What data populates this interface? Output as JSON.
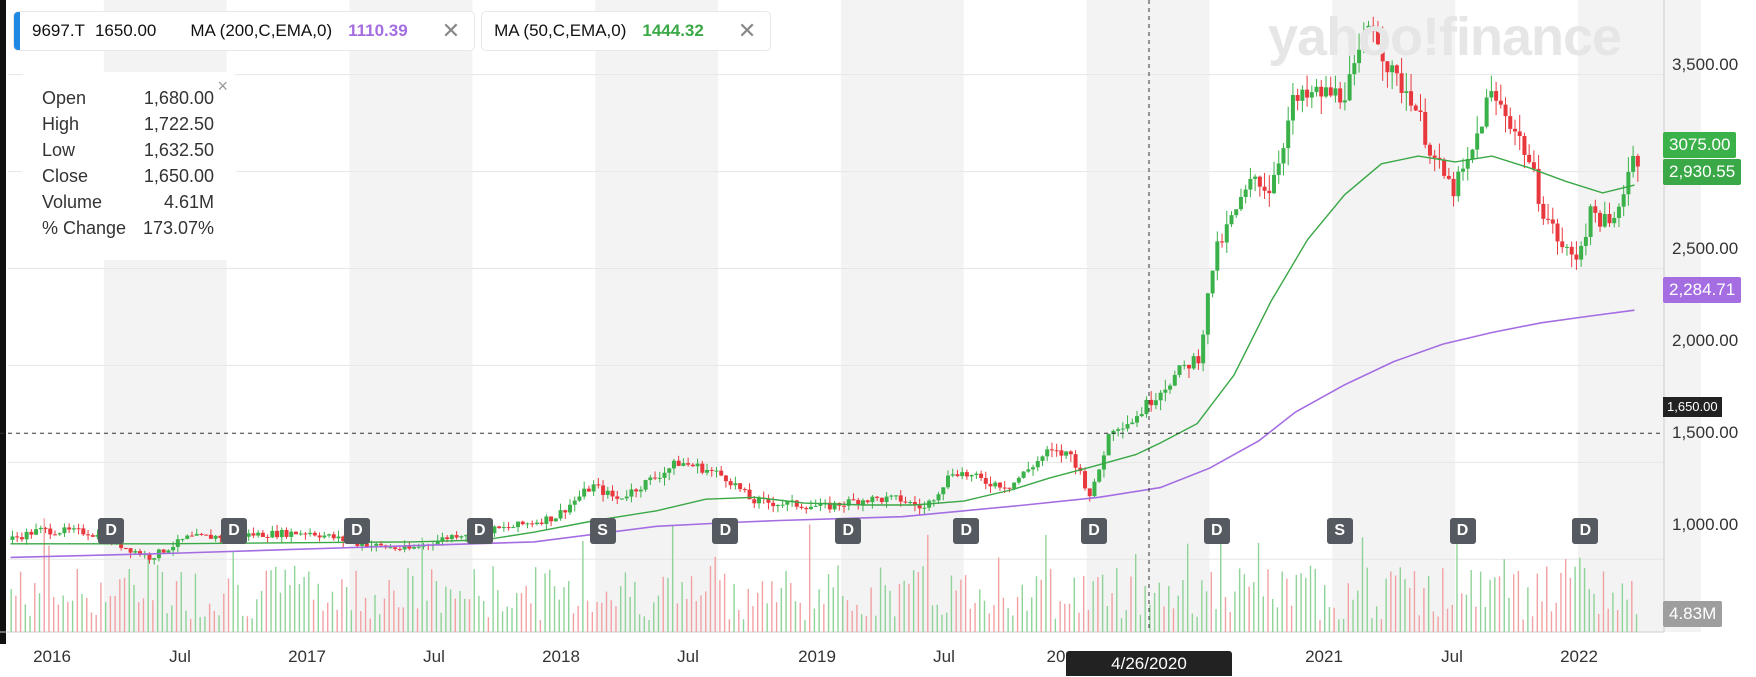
{
  "legend": {
    "symbol": "9697.T",
    "price": "1650.00",
    "ma200_label": "MA (200,C,EMA,0)",
    "ma200_value": "1110.39",
    "ma50_label": "MA (50,C,EMA,0)",
    "ma50_value": "1444.32",
    "close_glyph": "✕"
  },
  "ohlc": {
    "close_glyph": "×",
    "rows": [
      {
        "label": "Open",
        "value": "1,680.00"
      },
      {
        "label": "High",
        "value": "1,722.50"
      },
      {
        "label": "Low",
        "value": "1,632.50"
      },
      {
        "label": "Close",
        "value": "1,650.00"
      },
      {
        "label": "Volume",
        "value": "4.61M"
      },
      {
        "label": "% Change",
        "value": "173.07%"
      }
    ]
  },
  "watermark": "yahoo!finance",
  "price_labels": {
    "last": "3075.00",
    "ma50": "2,930.55",
    "ma200": "2,284.71",
    "crosshair": "1,650.00",
    "volume": "4.83M"
  },
  "crosshair_date": "4/26/2020",
  "colors": {
    "up": "#3bb14a",
    "down": "#e8383d",
    "ma200": "#a56de2",
    "ma50": "#3aa846",
    "symbol_accent": "#1e88e5"
  },
  "chart_data": {
    "type": "candlestick",
    "symbol": "9697.T",
    "y_ticks": [
      "3,500.00",
      "3,000.00",
      "2,500.00",
      "2,000.00",
      "1,500.00",
      "1,000.00"
    ],
    "y_tick_values": [
      3500,
      3000,
      2500,
      2000,
      1500,
      1000
    ],
    "x_ticks": [
      "2016",
      "Jul",
      "2017",
      "Jul",
      "2018",
      "Jul",
      "2019",
      "Jul",
      "20",
      "2021",
      "Jul",
      "2022"
    ],
    "x_tick_values": [
      2016.0,
      2016.5,
      2017.0,
      2017.5,
      2018.0,
      2018.5,
      2019.0,
      2019.5,
      2020.0,
      2021.0,
      2021.5,
      2022.0
    ],
    "ylim": [
      625,
      3885
    ],
    "xlim": [
      2015.86,
      2022.6
    ],
    "events": [
      {
        "t": 2016.28,
        "label": "D"
      },
      {
        "t": 2016.78,
        "label": "D"
      },
      {
        "t": 2017.28,
        "label": "D"
      },
      {
        "t": 2017.78,
        "label": "D"
      },
      {
        "t": 2018.28,
        "label": "S"
      },
      {
        "t": 2018.78,
        "label": "D"
      },
      {
        "t": 2019.28,
        "label": "D"
      },
      {
        "t": 2019.76,
        "label": "D"
      },
      {
        "t": 2020.28,
        "label": "D"
      },
      {
        "t": 2020.78,
        "label": "D"
      },
      {
        "t": 2021.28,
        "label": "S"
      },
      {
        "t": 2021.78,
        "label": "D"
      },
      {
        "t": 2022.28,
        "label": "D"
      }
    ],
    "close_path": [
      [
        2015.87,
        1100
      ],
      [
        2016.0,
        1150
      ],
      [
        2016.2,
        1140
      ],
      [
        2016.45,
        1010
      ],
      [
        2016.6,
        1110
      ],
      [
        2016.9,
        1130
      ],
      [
        2017.1,
        1140
      ],
      [
        2017.3,
        1080
      ],
      [
        2017.5,
        1050
      ],
      [
        2017.7,
        1130
      ],
      [
        2017.9,
        1160
      ],
      [
        2018.1,
        1220
      ],
      [
        2018.25,
        1380
      ],
      [
        2018.35,
        1310
      ],
      [
        2018.5,
        1420
      ],
      [
        2018.6,
        1500
      ],
      [
        2018.7,
        1470
      ],
      [
        2018.8,
        1420
      ],
      [
        2018.9,
        1300
      ],
      [
        2019.0,
        1290
      ],
      [
        2019.2,
        1270
      ],
      [
        2019.35,
        1310
      ],
      [
        2019.5,
        1310
      ],
      [
        2019.6,
        1260
      ],
      [
        2019.72,
        1460
      ],
      [
        2019.85,
        1400
      ],
      [
        2019.95,
        1380
      ],
      [
        2020.1,
        1550
      ],
      [
        2020.2,
        1540
      ],
      [
        2020.28,
        1320
      ],
      [
        2020.36,
        1680
      ],
      [
        2020.45,
        1720
      ],
      [
        2020.55,
        1860
      ],
      [
        2020.65,
        1980
      ],
      [
        2020.72,
        2050
      ],
      [
        2020.78,
        2560
      ],
      [
        2020.85,
        2750
      ],
      [
        2020.95,
        2980
      ],
      [
        2021.0,
        2900
      ],
      [
        2021.05,
        3100
      ],
      [
        2021.1,
        3350
      ],
      [
        2021.2,
        3400
      ],
      [
        2021.3,
        3400
      ],
      [
        2021.35,
        3500
      ],
      [
        2021.42,
        3800
      ],
      [
        2021.5,
        3500
      ],
      [
        2021.58,
        3400
      ],
      [
        2021.68,
        3050
      ],
      [
        2021.75,
        2900
      ],
      [
        2021.82,
        3050
      ],
      [
        2021.9,
        3400
      ],
      [
        2021.97,
        3300
      ],
      [
        2022.05,
        3100
      ],
      [
        2022.12,
        2800
      ],
      [
        2022.2,
        2600
      ],
      [
        2022.25,
        2550
      ],
      [
        2022.32,
        2800
      ],
      [
        2022.4,
        2700
      ],
      [
        2022.48,
        3075
      ]
    ],
    "ma50_path": [
      [
        2015.87,
        1080
      ],
      [
        2016.5,
        1080
      ],
      [
        2017.0,
        1085
      ],
      [
        2017.5,
        1090
      ],
      [
        2017.8,
        1100
      ],
      [
        2018.0,
        1140
      ],
      [
        2018.25,
        1200
      ],
      [
        2018.5,
        1250
      ],
      [
        2018.7,
        1310
      ],
      [
        2018.9,
        1320
      ],
      [
        2019.1,
        1290
      ],
      [
        2019.35,
        1280
      ],
      [
        2019.55,
        1280
      ],
      [
        2019.75,
        1300
      ],
      [
        2019.95,
        1360
      ],
      [
        2020.1,
        1420
      ],
      [
        2020.28,
        1480
      ],
      [
        2020.45,
        1540
      ],
      [
        2020.55,
        1600
      ],
      [
        2020.7,
        1700
      ],
      [
        2020.85,
        1950
      ],
      [
        2021.0,
        2330
      ],
      [
        2021.15,
        2650
      ],
      [
        2021.3,
        2880
      ],
      [
        2021.45,
        3040
      ],
      [
        2021.6,
        3080
      ],
      [
        2021.75,
        3050
      ],
      [
        2021.9,
        3080
      ],
      [
        2022.05,
        3020
      ],
      [
        2022.2,
        2950
      ],
      [
        2022.35,
        2890
      ],
      [
        2022.48,
        2930
      ]
    ],
    "ma200_path": [
      [
        2015.87,
        1010
      ],
      [
        2016.5,
        1030
      ],
      [
        2017.0,
        1050
      ],
      [
        2017.5,
        1070
      ],
      [
        2018.0,
        1090
      ],
      [
        2018.5,
        1170
      ],
      [
        2018.8,
        1190
      ],
      [
        2019.0,
        1200
      ],
      [
        2019.5,
        1220
      ],
      [
        2020.0,
        1280
      ],
      [
        2020.3,
        1320
      ],
      [
        2020.55,
        1370
      ],
      [
        2020.75,
        1470
      ],
      [
        2020.95,
        1610
      ],
      [
        2021.1,
        1760
      ],
      [
        2021.3,
        1900
      ],
      [
        2021.5,
        2020
      ],
      [
        2021.7,
        2110
      ],
      [
        2021.9,
        2170
      ],
      [
        2022.1,
        2220
      ],
      [
        2022.3,
        2255
      ],
      [
        2022.48,
        2285
      ]
    ]
  }
}
